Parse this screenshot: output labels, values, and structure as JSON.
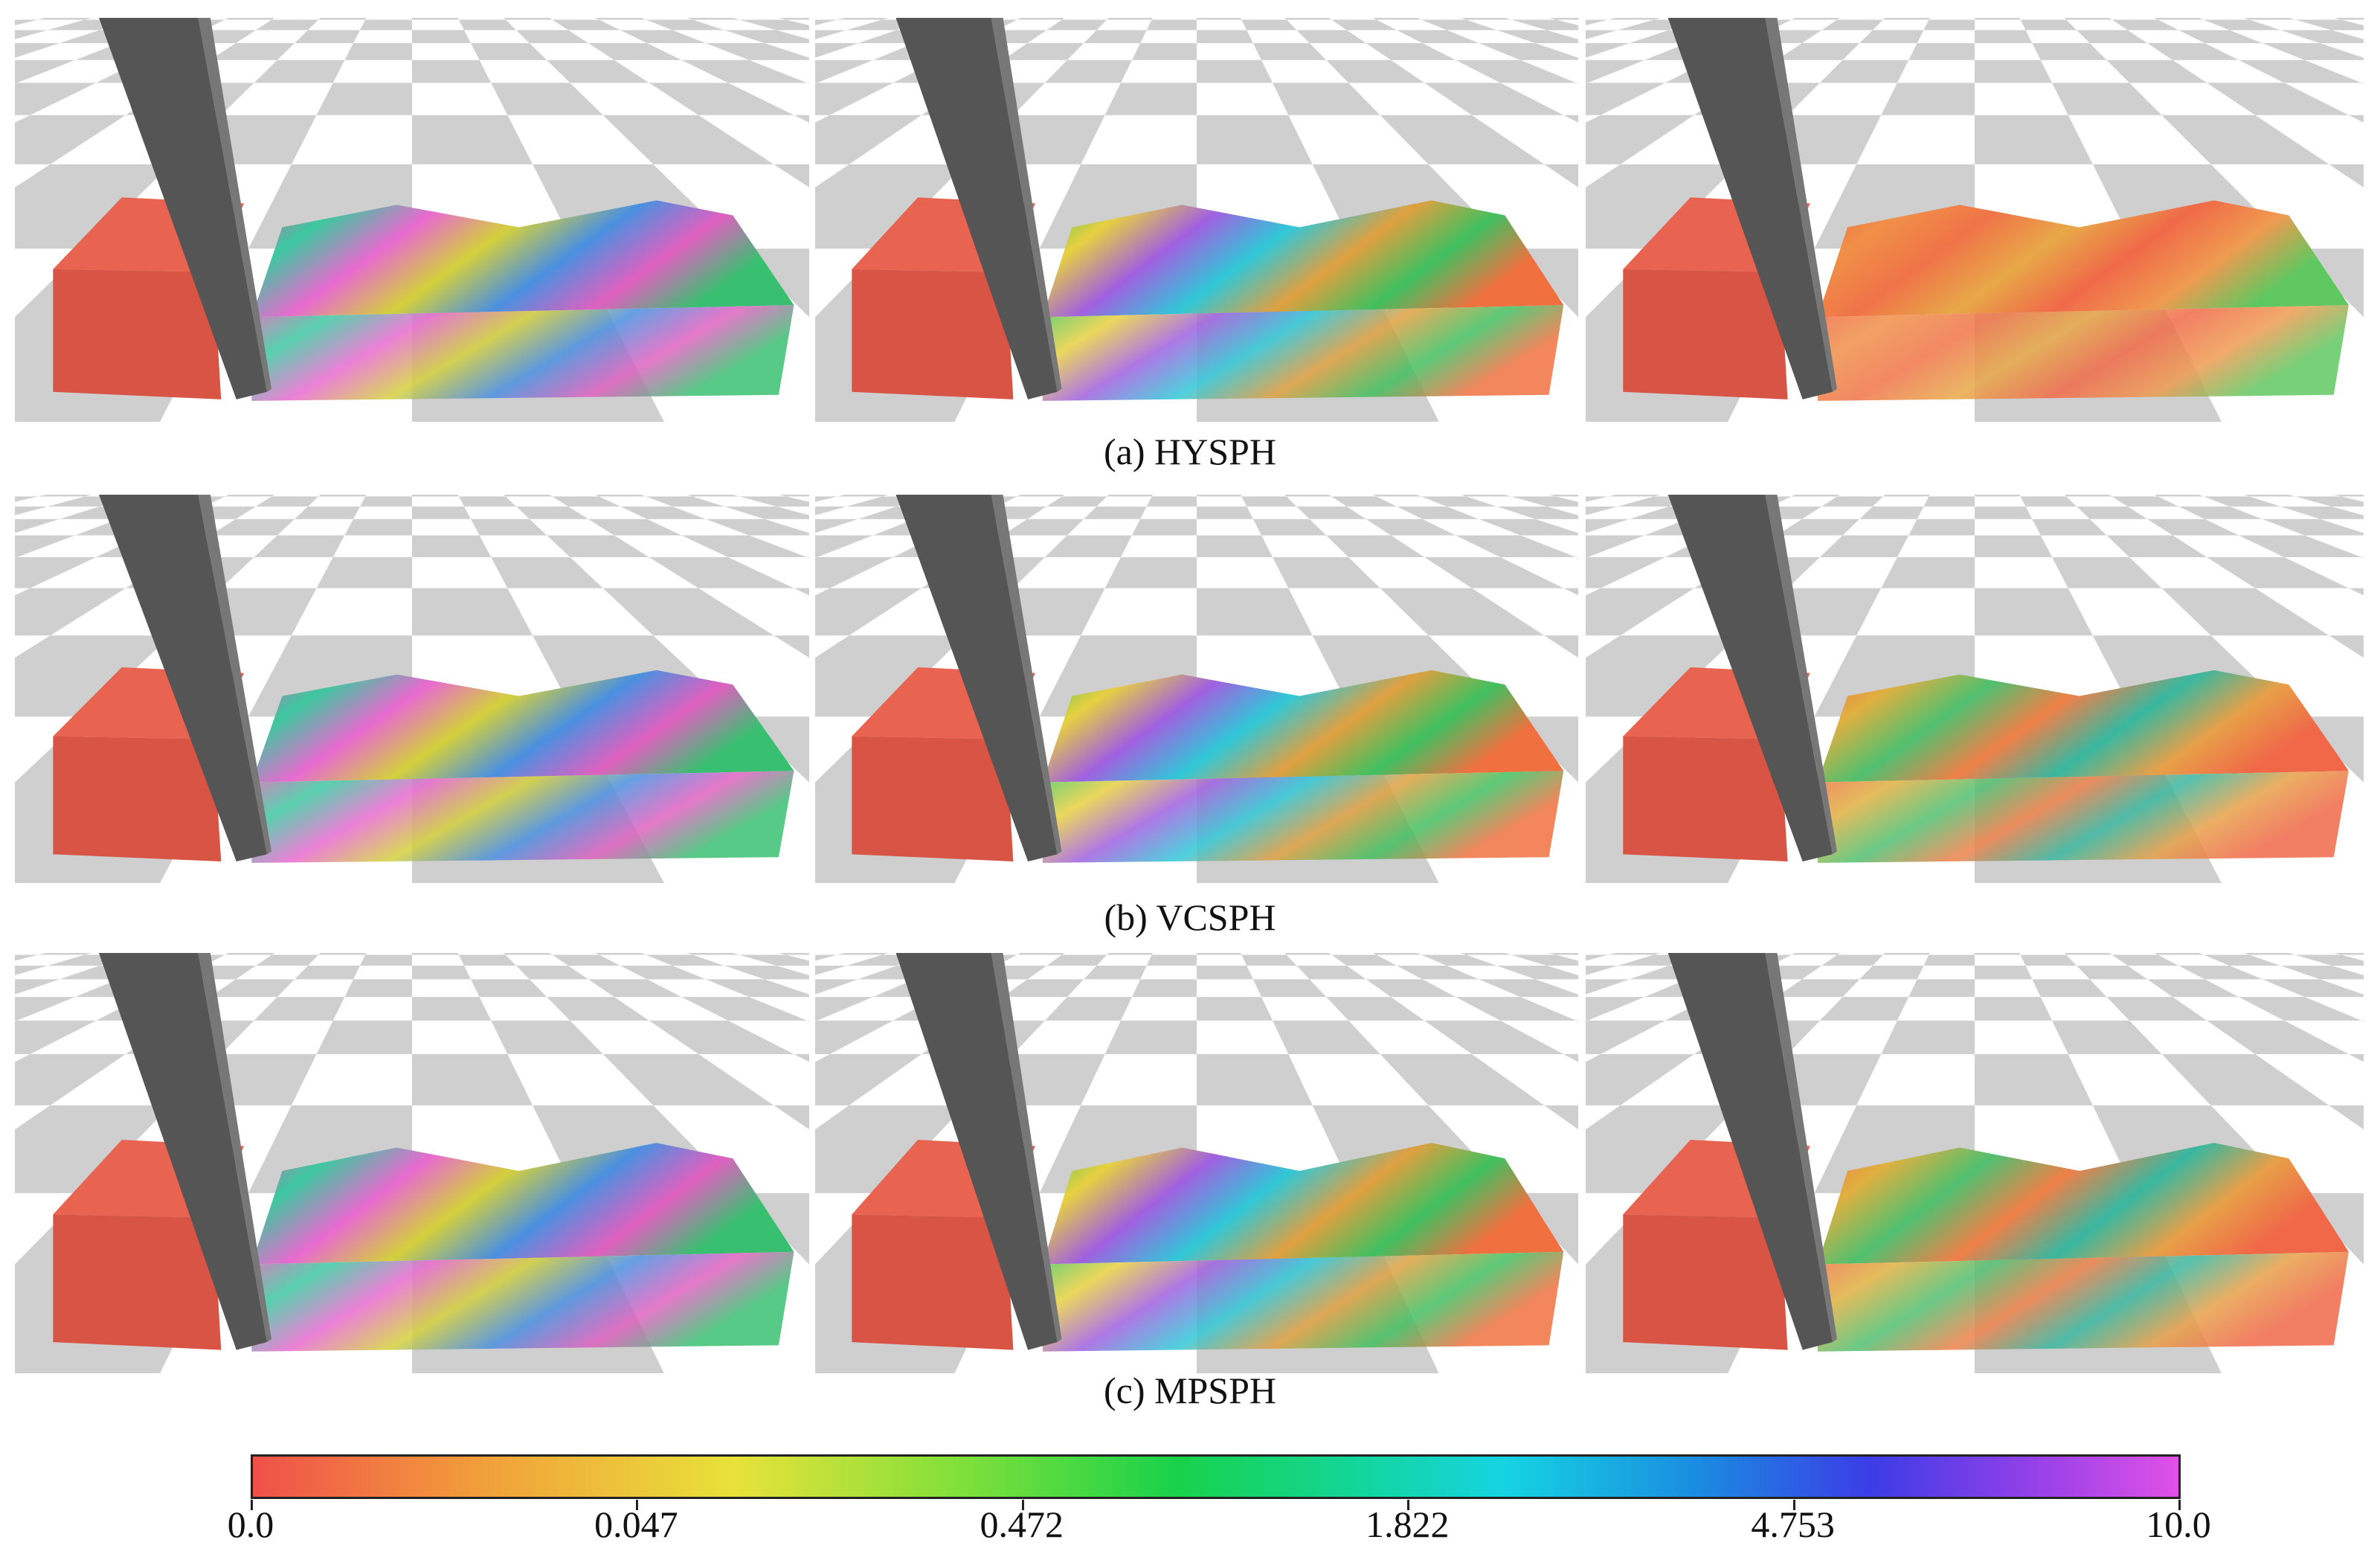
{
  "figure": {
    "rows": [
      {
        "caption": "(a) HYSPH"
      },
      {
        "caption": "(b) VCSPH"
      },
      {
        "caption": "(c) MPSPH"
      }
    ],
    "colorbar": {
      "ticks": [
        "0.0",
        "0.047",
        "0.472",
        "1.822",
        "4.753",
        "10.0"
      ]
    }
  }
}
